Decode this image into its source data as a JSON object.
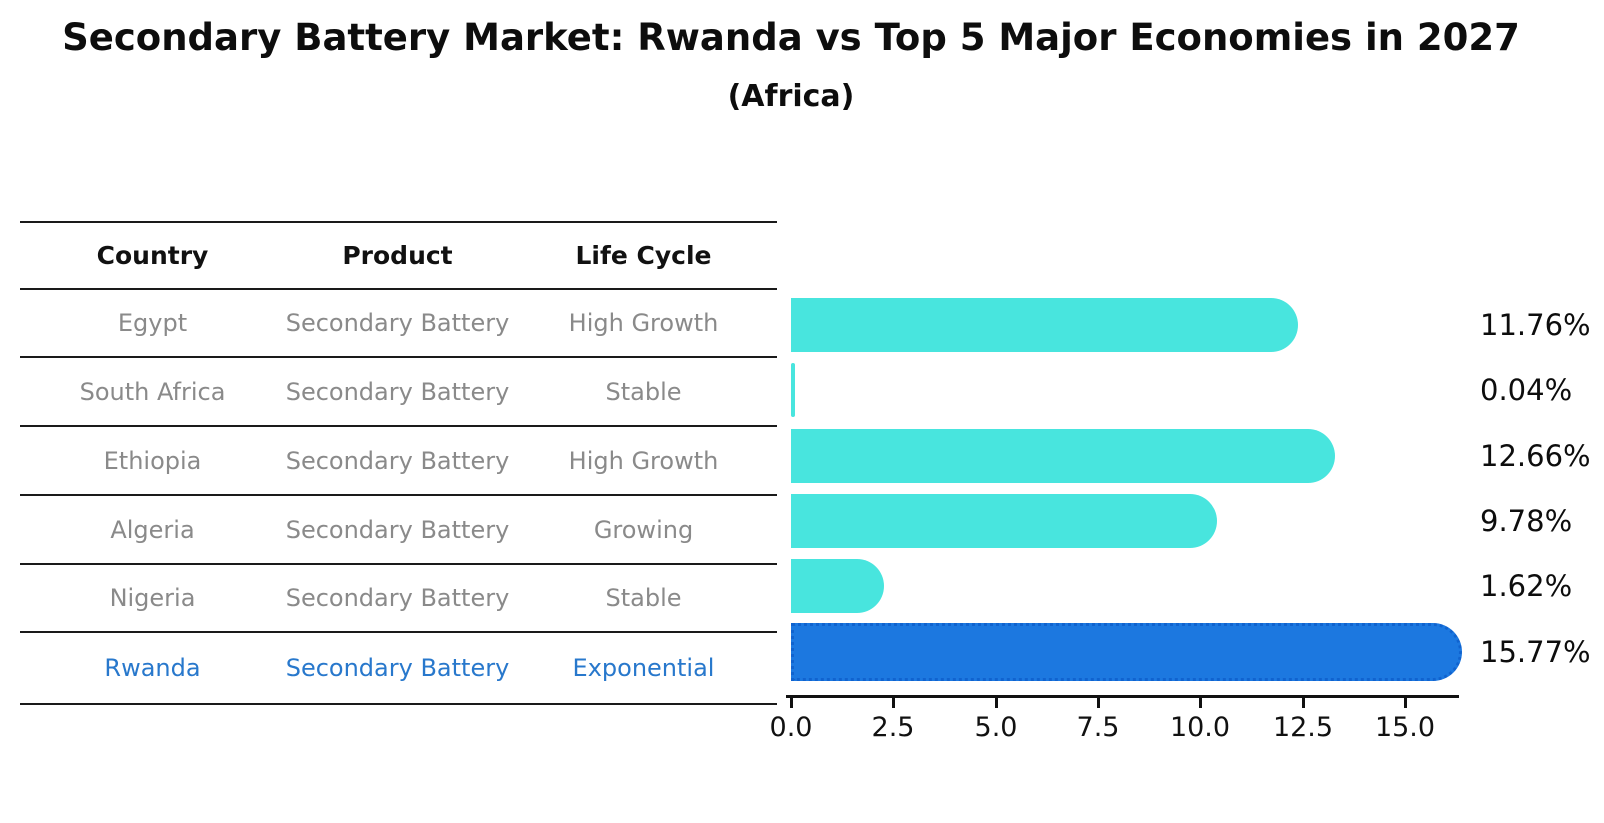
{
  "title": "Secondary Battery Market: Rwanda vs Top 5 Major Economies in 2027",
  "subtitle": "(Africa)",
  "table": {
    "headers": [
      "Country",
      "Product",
      "Life Cycle"
    ],
    "rows": [
      {
        "country": "Egypt",
        "product": "Secondary Battery",
        "life_cycle": "High Growth",
        "highlight": false
      },
      {
        "country": "South Africa",
        "product": "Secondary Battery",
        "life_cycle": "Stable",
        "highlight": false
      },
      {
        "country": "Ethiopia",
        "product": "Secondary Battery",
        "life_cycle": "High Growth",
        "highlight": false
      },
      {
        "country": "Algeria",
        "product": "Secondary Battery",
        "life_cycle": "Growing",
        "highlight": false
      },
      {
        "country": "Nigeria",
        "product": "Secondary Battery",
        "life_cycle": "Stable",
        "highlight": false
      },
      {
        "country": "Rwanda",
        "product": "Secondary Battery",
        "life_cycle": "Exponential",
        "highlight": true
      }
    ]
  },
  "chart_data": {
    "type": "bar",
    "orientation": "horizontal",
    "title": "Secondary Battery Market: Rwanda vs Top 5 Major Economies in 2027",
    "subtitle": "(Africa)",
    "categories": [
      "Egypt",
      "South Africa",
      "Ethiopia",
      "Algeria",
      "Nigeria",
      "Rwanda"
    ],
    "values": [
      11.76,
      0.04,
      12.66,
      9.78,
      1.62,
      15.77
    ],
    "value_labels": [
      "11.76%",
      "0.04%",
      "12.66%",
      "9.78%",
      "1.62%",
      "15.77%"
    ],
    "unit": "%",
    "x_tick_labels": [
      "0.0",
      "2.5",
      "5.0",
      "7.5",
      "10.0",
      "12.5",
      "15.0"
    ],
    "xlim": [
      0,
      16.3
    ],
    "grid": false,
    "legend": false,
    "highlight_index": 5,
    "bar_color": "#48e5de",
    "highlight_bar_color": "#1c78e0"
  },
  "colors": {
    "bar": "#48e5de",
    "highlight_bar": "#1c78e0",
    "highlight_border": "#1063cf",
    "highlight_text": "#2878cc",
    "row_text": "#8a8a8a",
    "header_text": "#111111",
    "axis_line": "#111111",
    "value_text": "#0d0d0d"
  }
}
